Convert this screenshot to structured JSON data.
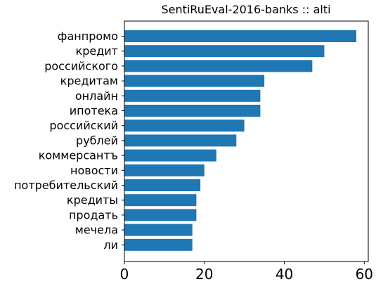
{
  "chart_data": {
    "type": "bar",
    "orientation": "horizontal",
    "title": "SentiRuEval-2016-banks :: alti",
    "xlabel": "",
    "ylabel": "",
    "categories": [
      "фанпромо",
      "кредит",
      "российского",
      "кредитам",
      "онлайн",
      "ипотека",
      "российский",
      "рублей",
      "коммерсантъ",
      "новости",
      "потребительский",
      "кредиты",
      "продать",
      "мечела",
      "ли"
    ],
    "values": [
      58,
      50,
      47,
      35,
      34,
      34,
      30,
      28,
      23,
      20,
      19,
      18,
      18,
      17,
      17
    ],
    "xlim": [
      0,
      61
    ],
    "xticks": [
      0,
      20,
      40,
      60
    ],
    "grid": false,
    "bar_color": "#1f77b4"
  }
}
